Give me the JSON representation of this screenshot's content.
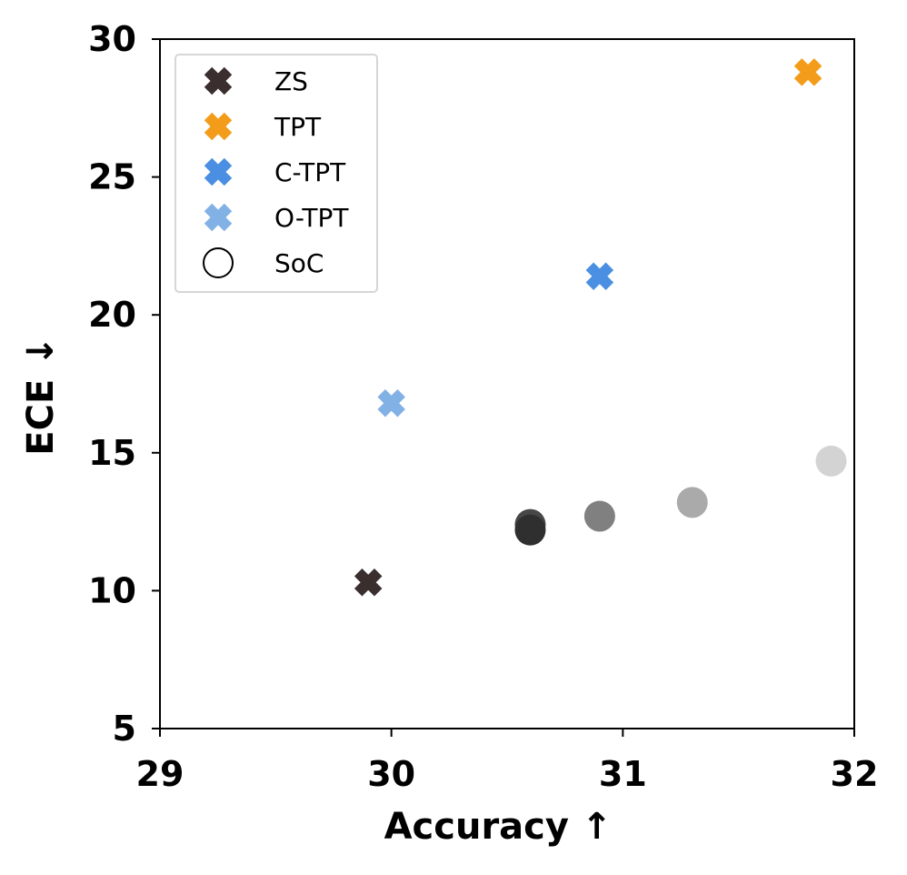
{
  "chart_data": {
    "type": "scatter",
    "xlabel": "Accuracy  ↑",
    "ylabel": "ECE  ↓",
    "xlim": [
      29,
      32
    ],
    "ylim": [
      5,
      30
    ],
    "xticks": [
      "29",
      "30",
      "31",
      "32"
    ],
    "yticks": [
      "5",
      "10",
      "15",
      "20",
      "25",
      "30"
    ],
    "legend_position": "top-left",
    "grid": false,
    "series": [
      {
        "name": "ZS",
        "marker": "x",
        "color": "#3a2e2e",
        "points": [
          {
            "x": 29.9,
            "y": 10.3
          }
        ]
      },
      {
        "name": "TPT",
        "marker": "x",
        "color": "#f39c1a",
        "points": [
          {
            "x": 31.8,
            "y": 28.8
          }
        ]
      },
      {
        "name": "C-TPT",
        "marker": "x",
        "color": "#4a8fe2",
        "points": [
          {
            "x": 30.9,
            "y": 21.4
          }
        ]
      },
      {
        "name": "O-TPT",
        "marker": "x",
        "color": "#82b1e6",
        "points": [
          {
            "x": 30.0,
            "y": 16.8
          }
        ]
      },
      {
        "name": "SoC",
        "marker": "o",
        "color": "#000000",
        "points": [
          {
            "x": 30.6,
            "y": 12.4,
            "color": "#474747"
          },
          {
            "x": 30.6,
            "y": 12.2,
            "color": "#2f2f2f"
          },
          {
            "x": 30.9,
            "y": 12.7,
            "color": "#808080"
          },
          {
            "x": 31.3,
            "y": 13.2,
            "color": "#aaaaaa"
          },
          {
            "x": 31.9,
            "y": 14.7,
            "color": "#d3d3d3"
          }
        ]
      }
    ]
  }
}
